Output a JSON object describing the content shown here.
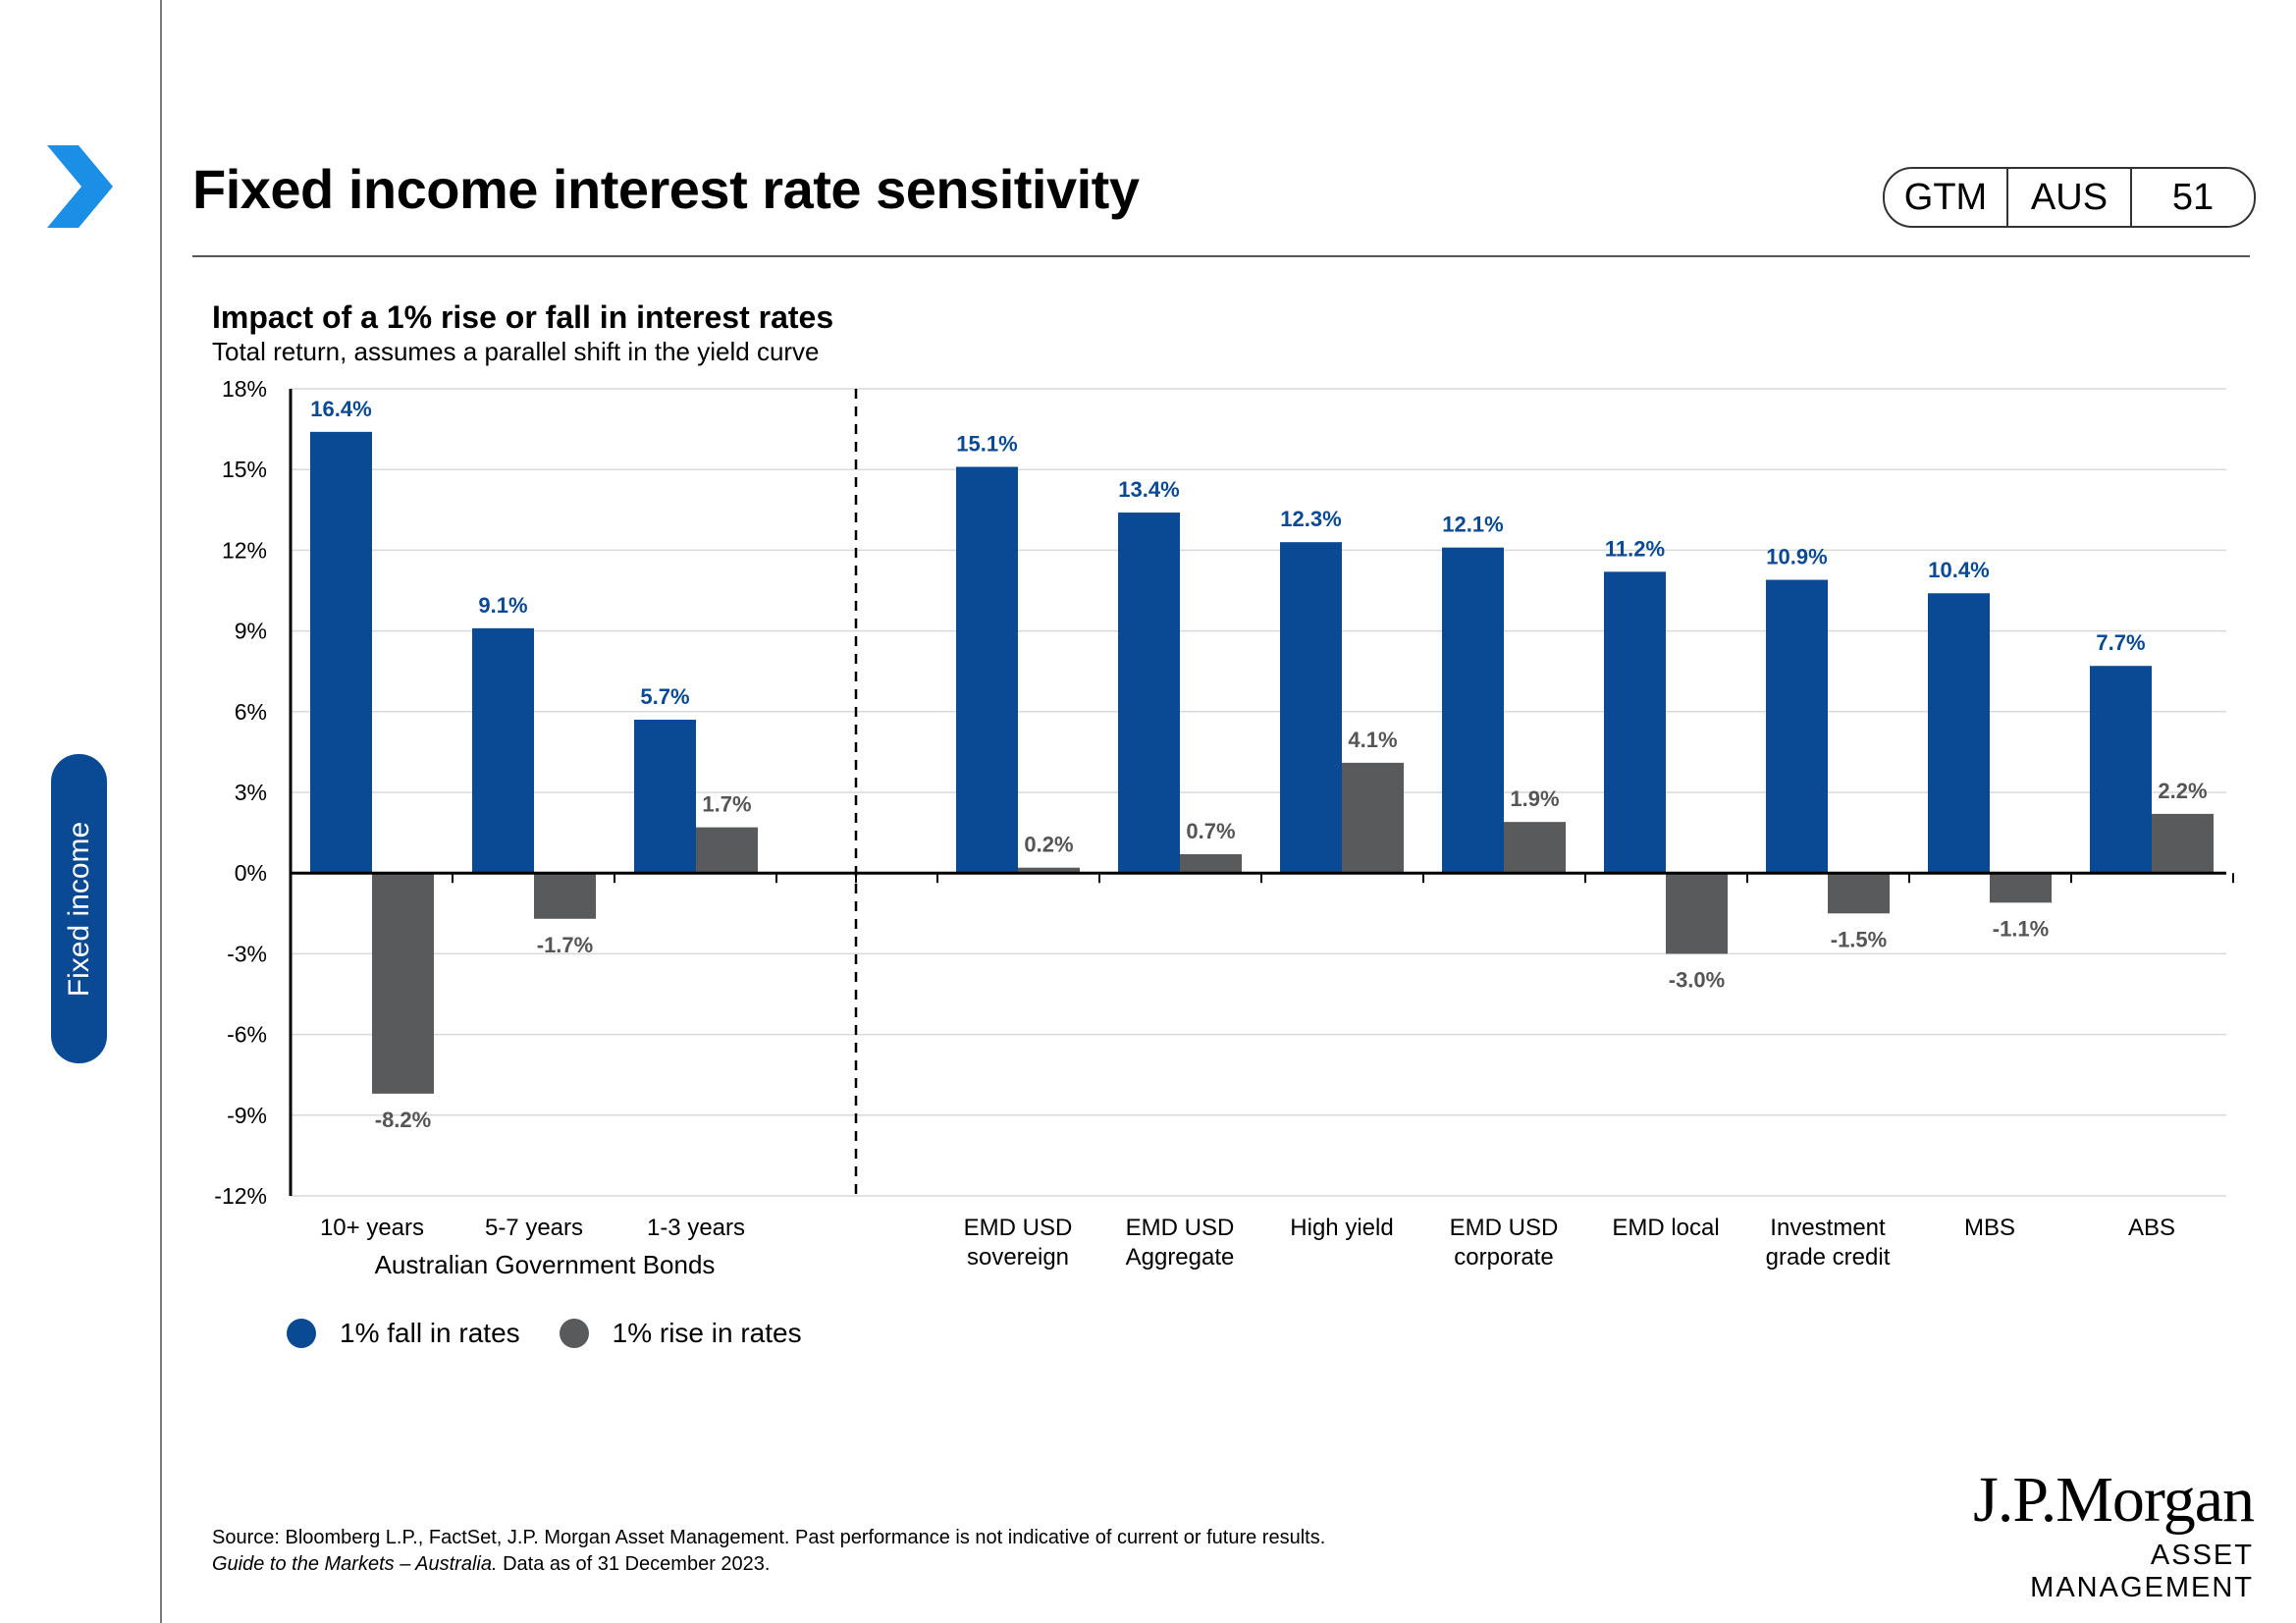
{
  "header": {
    "title": "Fixed income interest rate sensitivity",
    "badge": [
      "GTM",
      "AUS",
      "51"
    ]
  },
  "sidebar": {
    "tab_label": "Fixed income"
  },
  "chart_data": {
    "type": "bar",
    "title": "Impact of a 1% rise or fall in interest rates",
    "subtitle": "Total return, assumes a parallel shift in the yield curve",
    "ylim": [
      -12,
      18
    ],
    "yticks": [
      "18%",
      "15%",
      "12%",
      "9%",
      "6%",
      "3%",
      "0%",
      "-3%",
      "-6%",
      "-9%",
      "-12%"
    ],
    "ytick_values": [
      18,
      15,
      12,
      9,
      6,
      3,
      0,
      -3,
      -6,
      -9,
      -12
    ],
    "grid": true,
    "group_label": "Australian Government Bonds",
    "categories": [
      "10+ years",
      "5-7 years",
      "1-3 years",
      "EMD USD sovereign",
      "EMD USD Aggregate",
      "High yield",
      "EMD USD corporate",
      "EMD local",
      "Investment grade credit",
      "MBS",
      "ABS"
    ],
    "category_lines": [
      [
        "10+ years"
      ],
      [
        "5-7 years"
      ],
      [
        "1-3 years"
      ],
      [
        "EMD USD",
        "sovereign"
      ],
      [
        "EMD USD",
        "Aggregate"
      ],
      [
        "High yield"
      ],
      [
        "EMD USD",
        "corporate"
      ],
      [
        "EMD local"
      ],
      [
        "Investment",
        "grade credit"
      ],
      [
        "MBS"
      ],
      [
        "ABS"
      ]
    ],
    "series": [
      {
        "name": "1% fall in rates",
        "color": "#0a4a94",
        "values": [
          16.4,
          9.1,
          5.7,
          15.1,
          13.4,
          12.3,
          12.1,
          11.2,
          10.9,
          10.4,
          7.7
        ],
        "labels": [
          "16.4%",
          "9.1%",
          "5.7%",
          "15.1%",
          "13.4%",
          "12.3%",
          "12.1%",
          "11.2%",
          "10.9%",
          "10.4%",
          "7.7%"
        ]
      },
      {
        "name": "1% rise in rates",
        "color": "#585a5c",
        "values": [
          -8.2,
          -1.7,
          1.7,
          0.2,
          0.7,
          4.1,
          1.9,
          -3.0,
          -1.5,
          -1.1,
          2.2
        ],
        "labels": [
          "-8.2%",
          "-1.7%",
          "1.7%",
          "0.2%",
          "0.7%",
          "4.1%",
          "1.9%",
          "-3.0%",
          "-1.5%",
          "-1.1%",
          "2.2%"
        ]
      }
    ]
  },
  "legend": [
    {
      "label": "1% fall in rates",
      "color": "#0a4a94"
    },
    {
      "label": "1% rise in rates",
      "color": "#585a5c"
    }
  ],
  "footer": {
    "source": "Source: Bloomberg L.P., FactSet, J.P. Morgan Asset Management.  Past performance is not indicative of current or future results.",
    "guide_title": "Guide to the Markets – Australia.",
    "data_date": " Data as of 31 December 2023."
  },
  "logo": {
    "main": "J.P.Morgan",
    "sub": "ASSET MANAGEMENT"
  }
}
